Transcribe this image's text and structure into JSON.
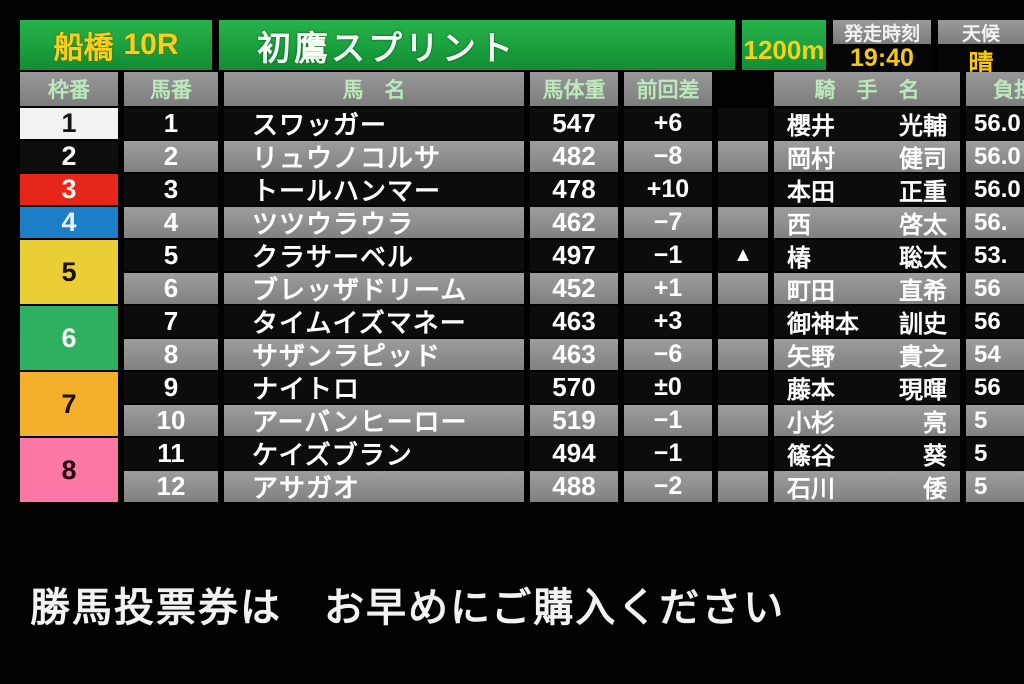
{
  "board": {
    "track": "船橋",
    "race_no": "10R",
    "race_name": "初鷹スプリント",
    "distance": "1200m",
    "start_time_label": "発走時刻",
    "start_time": "19:40",
    "weather_label": "天候",
    "weather": "晴"
  },
  "table": {
    "columns": {
      "frame": "枠番",
      "number": "馬番",
      "name": "馬　名",
      "body_weight": "馬体重",
      "weight_diff": "前回差",
      "jockey": "騎　手　名",
      "burden": "負担"
    },
    "frames": [
      {
        "no": "1"
      },
      {
        "no": "2"
      },
      {
        "no": "3"
      },
      {
        "no": "4"
      },
      {
        "no": "5"
      },
      {
        "no": "6"
      },
      {
        "no": "7"
      },
      {
        "no": "8"
      }
    ],
    "horses": [
      {
        "num": "1",
        "name": "スワッガー",
        "weight": "547",
        "diff": "+6",
        "marker": "",
        "jockey_family": "櫻井",
        "jockey_given": "光輔",
        "burden": "56.0"
      },
      {
        "num": "2",
        "name": "リュウノコルサ",
        "weight": "482",
        "diff": "−8",
        "marker": "",
        "jockey_family": "岡村",
        "jockey_given": "健司",
        "burden": "56.0"
      },
      {
        "num": "3",
        "name": "トールハンマー",
        "weight": "478",
        "diff": "+10",
        "marker": "",
        "jockey_family": "本田",
        "jockey_given": "正重",
        "burden": "56.0"
      },
      {
        "num": "4",
        "name": "ツツウラウラ",
        "weight": "462",
        "diff": "−7",
        "marker": "",
        "jockey_family": "西",
        "jockey_given": "啓太",
        "burden": "56."
      },
      {
        "num": "5",
        "name": "クラサーベル",
        "weight": "497",
        "diff": "−1",
        "marker": "▲",
        "jockey_family": "椿",
        "jockey_given": "聡太",
        "burden": "53."
      },
      {
        "num": "6",
        "name": "ブレッザドリーム",
        "weight": "452",
        "diff": "+1",
        "marker": "",
        "jockey_family": "町田",
        "jockey_given": "直希",
        "burden": "56"
      },
      {
        "num": "7",
        "name": "タイムイズマネー",
        "weight": "463",
        "diff": "+3",
        "marker": "",
        "jockey_family": "御神本",
        "jockey_given": "訓史",
        "burden": "56"
      },
      {
        "num": "8",
        "name": "サザンラピッド",
        "weight": "463",
        "diff": "−6",
        "marker": "",
        "jockey_family": "矢野",
        "jockey_given": "貴之",
        "burden": "54"
      },
      {
        "num": "9",
        "name": "ナイトロ",
        "weight": "570",
        "diff": "±0",
        "marker": "",
        "jockey_family": "藤本",
        "jockey_given": "現暉",
        "burden": "56"
      },
      {
        "num": "10",
        "name": "アーバンヒーロー",
        "weight": "519",
        "diff": "−1",
        "marker": "",
        "jockey_family": "小杉",
        "jockey_given": "亮",
        "burden": "5"
      },
      {
        "num": "11",
        "name": "ケイズブラン",
        "weight": "494",
        "diff": "−1",
        "marker": "",
        "jockey_family": "篠谷",
        "jockey_given": "葵",
        "burden": "5"
      },
      {
        "num": "12",
        "name": "アサガオ",
        "weight": "488",
        "diff": "−2",
        "marker": "",
        "jockey_family": "石川",
        "jockey_given": "倭",
        "burden": "5"
      }
    ]
  },
  "footer": {
    "message": "勝馬投票券は　お早めにご購入ください"
  },
  "colors": {
    "board_green": "#1ba03e",
    "accent_yellow": "#f6d019",
    "header_text_green": "#bce8bc",
    "row_dark": "#0c0c0c",
    "row_light": "#8f8f8f",
    "frame_colors": {
      "1": "#f2f2f2",
      "2": "#0d0d0d",
      "3": "#e52619",
      "4": "#1b7ec7",
      "5": "#e9cf35",
      "6": "#2fb061",
      "7": "#f4b02a",
      "8": "#fb77a6"
    }
  }
}
